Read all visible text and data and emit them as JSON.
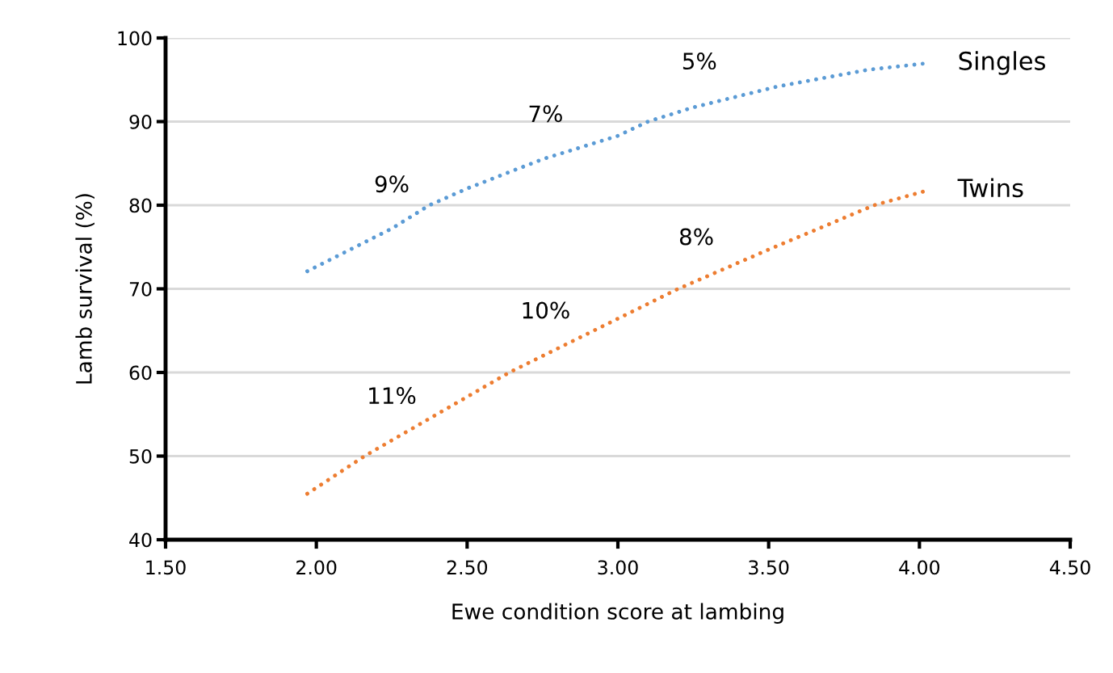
{
  "chart_data": {
    "type": "line",
    "xlabel": "Ewe condition score at lambing",
    "ylabel": "Lamb survival (%)",
    "xlim": [
      1.5,
      4.5
    ],
    "xticks": [
      {
        "value": 1.5,
        "label": "1.50"
      },
      {
        "value": 2.0,
        "label": "2.00"
      },
      {
        "value": 2.5,
        "label": "2.50"
      },
      {
        "value": 3.0,
        "label": "3.00"
      },
      {
        "value": 3.5,
        "label": "3.50"
      },
      {
        "value": 4.0,
        "label": "4.00"
      },
      {
        "value": 4.5,
        "label": "4.50"
      }
    ],
    "ylim": [
      40,
      100
    ],
    "yticks": [
      40,
      50,
      60,
      70,
      80,
      90,
      100
    ],
    "grid": "y",
    "legend": false,
    "marker": "none",
    "line_style": "dotted",
    "series": [
      {
        "name": "Singles",
        "color": "#5b9bd5",
        "x": [
          1.97,
          2.25,
          2.375,
          2.5,
          2.75,
          3.0,
          3.1,
          3.25,
          3.53,
          3.83,
          4.03
        ],
        "values": [
          72.1,
          77.2,
          80,
          82.0,
          85.5,
          88.3,
          90,
          91.7,
          94.2,
          96.2,
          97.0
        ]
      },
      {
        "name": "Twins",
        "color": "#ed7d31",
        "x": [
          1.97,
          2.16,
          2.64,
          3.2,
          3.5,
          3.85,
          4.03
        ],
        "values": [
          45.5,
          50,
          60,
          70,
          74.7,
          80,
          81.8
        ]
      }
    ],
    "annotations": [
      {
        "text": "9%",
        "x": 2.25,
        "y": 77.2
      },
      {
        "text": "7%",
        "x": 2.76,
        "y": 85.6
      },
      {
        "text": "5%",
        "x": 3.27,
        "y": 91.9
      },
      {
        "text": "11%",
        "x": 2.25,
        "y": 51.9
      },
      {
        "text": "10%",
        "x": 2.76,
        "y": 62.1
      },
      {
        "text": "8%",
        "x": 3.26,
        "y": 70.9
      }
    ]
  }
}
